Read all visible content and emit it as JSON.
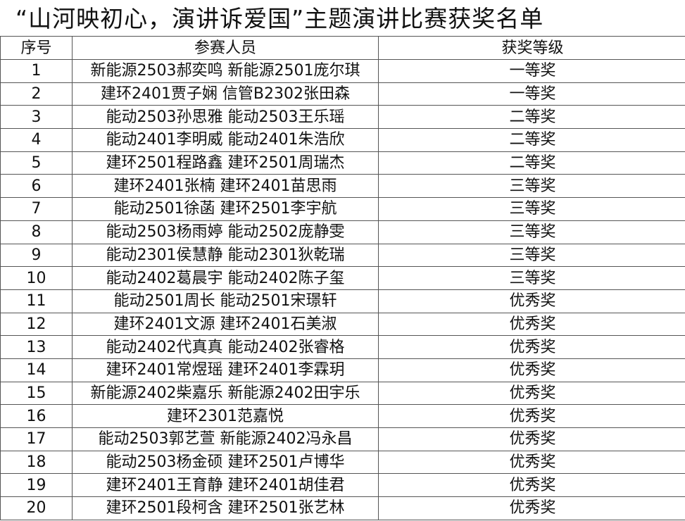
{
  "title": "“山河映初心，演讲诉爱国”主题演讲比赛获奖名单",
  "headers": [
    "序号",
    "参赛人员",
    "获奖等级"
  ],
  "rows": [
    {
      "no": "1",
      "people": "新能源2503郝奕鸣 新能源2501庞尔琪",
      "award": "一等奖"
    },
    {
      "no": "2",
      "people": "建环2401贾子娴 信管B2302张田森",
      "award": "一等奖"
    },
    {
      "no": "3",
      "people": "能动2503孙思雅 能动2503王乐瑶",
      "award": "二等奖"
    },
    {
      "no": "4",
      "people": "能动2401李明威 能动2401朱浩欣",
      "award": "二等奖"
    },
    {
      "no": "5",
      "people": "建环2501程路鑫 建环2501周瑞杰",
      "award": "二等奖"
    },
    {
      "no": "6",
      "people": "建环2401张楠 建环2401苗思雨",
      "award": "三等奖"
    },
    {
      "no": "7",
      "people": "能动2501徐菡 建环2501李宇航",
      "award": "三等奖"
    },
    {
      "no": "8",
      "people": "能动2503杨雨婷 能动2502庞静雯",
      "award": "三等奖"
    },
    {
      "no": "9",
      "people": "能动2301侯慧静 能动2301狄乾瑞",
      "award": "三等奖"
    },
    {
      "no": "10",
      "people": "能动2402葛晨宇 能动2402陈子玺",
      "award": "三等奖"
    },
    {
      "no": "11",
      "people": "能动2501周长 能动2501宋璟轩",
      "award": "优秀奖"
    },
    {
      "no": "12",
      "people": "建环2401文源 建环2401石美淑",
      "award": "优秀奖"
    },
    {
      "no": "13",
      "people": "能动2402代真真 能动2402张睿格",
      "award": "优秀奖"
    },
    {
      "no": "14",
      "people": "建环2401常煜瑶 建环2401李霖玥",
      "award": "优秀奖"
    },
    {
      "no": "15",
      "people": "新能源2402柴嘉乐 新能源2402田宇乐",
      "award": "优秀奖"
    },
    {
      "no": "16",
      "people": "建环2301范嘉悦",
      "award": "优秀奖"
    },
    {
      "no": "17",
      "people": "能动2503郭艺萱 新能源2402冯永昌",
      "award": "优秀奖"
    },
    {
      "no": "18",
      "people": "能动2503杨金硕 建环2501卢博华",
      "award": "优秀奖"
    },
    {
      "no": "19",
      "people": "建环2401王育静 建环2401胡佳君",
      "award": "优秀奖"
    },
    {
      "no": "20",
      "people": "建环2501段柯含 建环2501张艺林",
      "award": "优秀奖"
    }
  ]
}
